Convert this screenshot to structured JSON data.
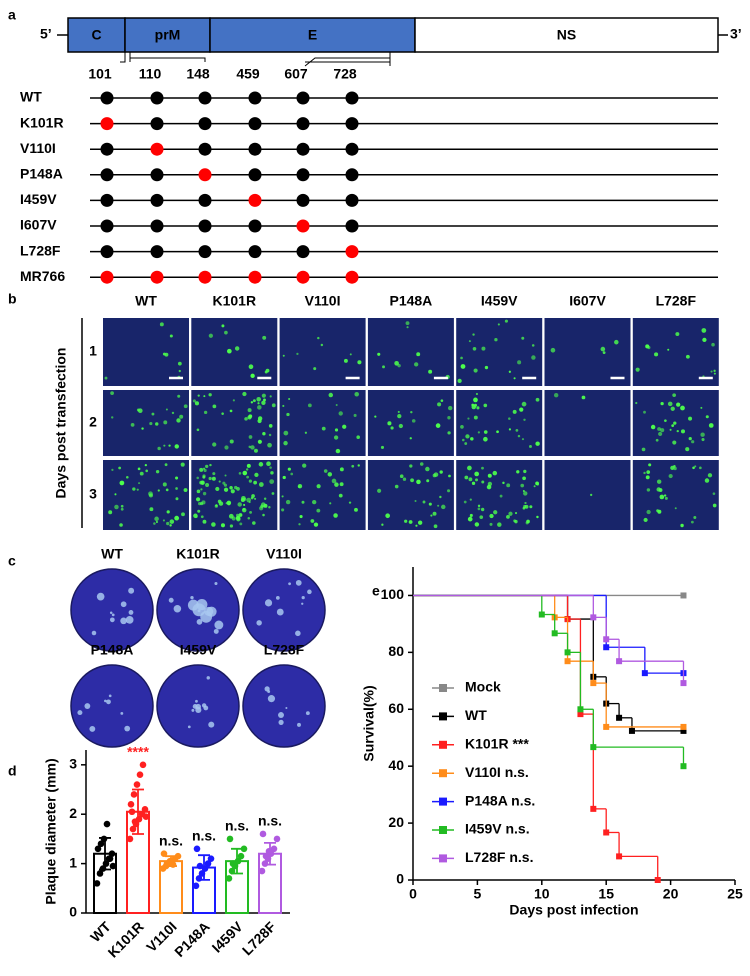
{
  "panel_a": {
    "label": "a",
    "five_prime": "5’",
    "three_prime": "3’",
    "segments": [
      {
        "name": "C",
        "color": "#4472c4"
      },
      {
        "name": "prM",
        "color": "#4472c4"
      },
      {
        "name": "E",
        "color": "#4472c4"
      },
      {
        "name": "NS",
        "color": "#ffffff"
      }
    ],
    "positions": [
      "101",
      "110",
      "148",
      "459",
      "607",
      "728"
    ],
    "strains": [
      {
        "name": "WT",
        "dot_colors": [
          "#000",
          "#000",
          "#000",
          "#000",
          "#000",
          "#000"
        ]
      },
      {
        "name": "K101R",
        "dot_colors": [
          "#f00",
          "#000",
          "#000",
          "#000",
          "#000",
          "#000"
        ]
      },
      {
        "name": "V110I",
        "dot_colors": [
          "#000",
          "#f00",
          "#000",
          "#000",
          "#000",
          "#000"
        ]
      },
      {
        "name": "P148A",
        "dot_colors": [
          "#000",
          "#000",
          "#f00",
          "#000",
          "#000",
          "#000"
        ]
      },
      {
        "name": "I459V",
        "dot_colors": [
          "#000",
          "#000",
          "#000",
          "#f00",
          "#000",
          "#000"
        ]
      },
      {
        "name": "I607V",
        "dot_colors": [
          "#000",
          "#000",
          "#000",
          "#000",
          "#f00",
          "#000"
        ]
      },
      {
        "name": "L728F",
        "dot_colors": [
          "#000",
          "#000",
          "#000",
          "#000",
          "#000",
          "#f00"
        ]
      },
      {
        "name": "MR766",
        "dot_colors": [
          "#f00",
          "#f00",
          "#f00",
          "#f00",
          "#f00",
          "#f00"
        ]
      }
    ]
  },
  "panel_b": {
    "label": "b",
    "columns": [
      "WT",
      "K101R",
      "V110I",
      "P148A",
      "I459V",
      "I607V",
      "L728F"
    ],
    "rows": [
      "1",
      "2",
      "3"
    ],
    "row_title": "Days post transfection"
  },
  "panel_c": {
    "label": "c",
    "plates": [
      "WT",
      "K101R",
      "V110I",
      "P148A",
      "I459V",
      "L728F"
    ]
  },
  "chart_data": [
    {
      "type": "bar",
      "label": "d",
      "ylabel": "Plaque diameter (mm)",
      "categories": [
        "WT",
        "K101R",
        "V110I",
        "P148A",
        "I459V",
        "L728F"
      ],
      "values": [
        1.2,
        2.05,
        1.05,
        0.92,
        1.05,
        1.2
      ],
      "errors": [
        0.32,
        0.45,
        0.1,
        0.25,
        0.25,
        0.22
      ],
      "colors": [
        "#000000",
        "#ff2020",
        "#ff8c1a",
        "#1a1aff",
        "#22bb22",
        "#b05ae0"
      ],
      "annotations": [
        "",
        "****",
        "n.s.",
        "n.s.",
        "n.s.",
        "n.s."
      ],
      "points": [
        [
          0.6,
          0.8,
          0.9,
          1.0,
          1.1,
          1.2,
          1.3,
          1.4,
          1.5,
          1.8,
          1.1,
          0.95
        ],
        [
          1.5,
          1.7,
          1.8,
          1.9,
          2.0,
          2.1,
          2.2,
          2.4,
          2.6,
          2.8,
          3.0,
          1.95,
          2.05,
          1.85
        ],
        [
          0.9,
          0.95,
          1.0,
          1.05,
          1.1,
          1.15,
          1.2,
          1.0,
          1.05,
          0.98
        ],
        [
          0.55,
          0.7,
          0.8,
          0.9,
          1.0,
          1.1,
          1.3,
          0.95
        ],
        [
          0.7,
          0.85,
          0.95,
          1.05,
          1.15,
          1.3,
          1.5,
          1.0
        ],
        [
          0.85,
          1.0,
          1.1,
          1.2,
          1.3,
          1.5,
          1.6,
          1.15,
          1.25
        ]
      ],
      "ylim": [
        0,
        3.3
      ],
      "yticks": [
        0,
        1,
        2,
        3
      ]
    },
    {
      "type": "step",
      "label": "e",
      "xlabel": "Days post infection",
      "ylabel": "Survival(%)",
      "xlim": [
        0,
        25
      ],
      "xticks": [
        0,
        5,
        10,
        15,
        20,
        25
      ],
      "ylim": [
        0,
        110
      ],
      "yticks": [
        0,
        20,
        40,
        60,
        80,
        100
      ],
      "legend": "left",
      "series": [
        {
          "name": "Mock",
          "color": "#888888",
          "x": [
            0,
            21
          ],
          "values": [
            100,
            100
          ]
        },
        {
          "name": "WT",
          "color": "#000000",
          "x": [
            0,
            12,
            14,
            15,
            16,
            17,
            21
          ],
          "values": [
            100,
            91.7,
            71.4,
            62,
            57,
            52.4,
            52.4
          ]
        },
        {
          "name": "K101R ***",
          "color": "#ff2020",
          "x": [
            0,
            12,
            13,
            14,
            15,
            16,
            19
          ],
          "values": [
            100,
            91.7,
            58.3,
            25,
            16.7,
            8.3,
            0
          ]
        },
        {
          "name": "V110I n.s.",
          "color": "#ff8c1a",
          "x": [
            0,
            11,
            12,
            14,
            15,
            21
          ],
          "values": [
            100,
            92.3,
            76.9,
            69.2,
            53.8,
            53.8
          ]
        },
        {
          "name": "P148A n.s.",
          "color": "#1a1aff",
          "x": [
            0,
            15,
            18,
            21
          ],
          "values": [
            100,
            81.8,
            72.7,
            72.7
          ]
        },
        {
          "name": "I459V n.s.",
          "color": "#22bb22",
          "x": [
            0,
            10,
            11,
            12,
            13,
            14,
            21
          ],
          "values": [
            100,
            93.3,
            86.7,
            80,
            60,
            46.7,
            40
          ]
        },
        {
          "name": "L728F n.s.",
          "color": "#b05ae0",
          "x": [
            0,
            14,
            15,
            16,
            21
          ],
          "values": [
            100,
            92.3,
            84.6,
            76.9,
            69.2
          ]
        }
      ]
    }
  ]
}
